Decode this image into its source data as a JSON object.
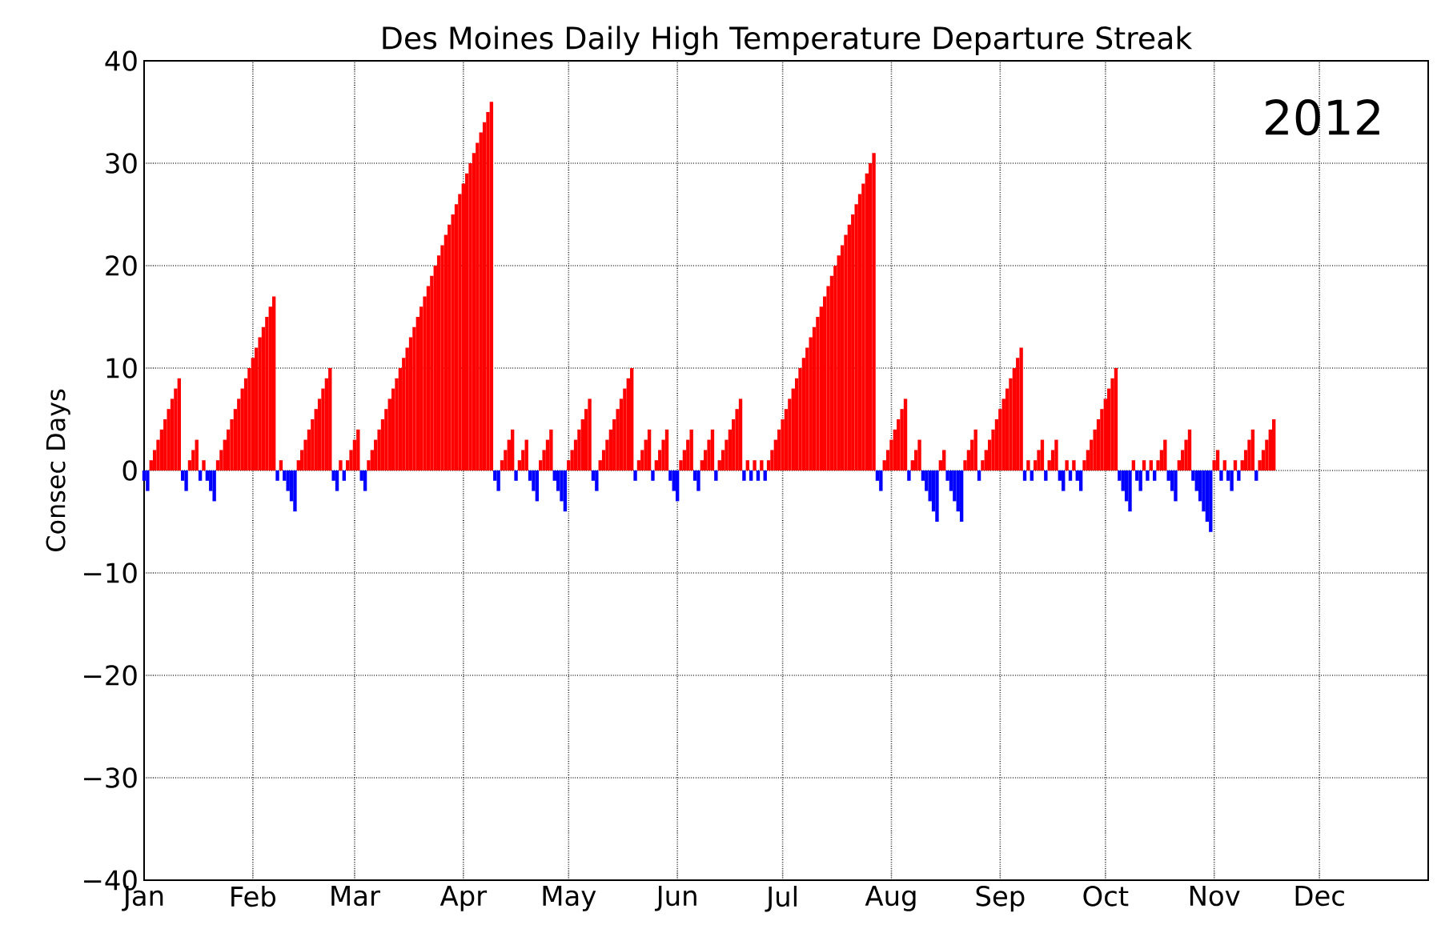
{
  "chart_data": {
    "type": "bar",
    "title": "Des Moines Daily High Temperature Departure Streak",
    "ylabel": "Consec Days",
    "annotations": [
      "2012"
    ],
    "xlim": [
      "2012-01-01",
      "2013-01-01"
    ],
    "xticks": [
      {
        "value": "2012-01-01",
        "label": "Jan"
      },
      {
        "value": "2012-02-01",
        "label": "Feb"
      },
      {
        "value": "2012-03-01",
        "label": "Mar"
      },
      {
        "value": "2012-04-01",
        "label": "Apr"
      },
      {
        "value": "2012-05-01",
        "label": "May"
      },
      {
        "value": "2012-06-01",
        "label": "Jun"
      },
      {
        "value": "2012-07-01",
        "label": "Jul"
      },
      {
        "value": "2012-08-01",
        "label": "Aug"
      },
      {
        "value": "2012-09-01",
        "label": "Sep"
      },
      {
        "value": "2012-10-01",
        "label": "Oct"
      },
      {
        "value": "2012-11-01",
        "label": "Nov"
      },
      {
        "value": "2012-12-01",
        "label": "Dec"
      }
    ],
    "ylim": [
      -40,
      40
    ],
    "yticks": [
      {
        "value": -40,
        "label": "−40"
      },
      {
        "value": -30,
        "label": "−30"
      },
      {
        "value": -20,
        "label": "−20"
      },
      {
        "value": -10,
        "label": "−10"
      },
      0,
      10,
      20,
      30,
      40
    ],
    "grid": true,
    "series": [
      {
        "color": "#ff0000",
        "x": [
          "2012-01-03",
          "2012-01-04",
          "2012-01-05",
          "2012-01-06",
          "2012-01-07",
          "2012-01-08",
          "2012-01-09",
          "2012-01-10",
          "2012-01-11",
          "2012-01-14",
          "2012-01-15",
          "2012-01-16",
          "2012-01-18",
          "2012-01-22",
          "2012-01-23",
          "2012-01-24",
          "2012-01-25",
          "2012-01-26",
          "2012-01-27",
          "2012-01-28",
          "2012-01-29",
          "2012-01-30",
          "2012-01-31",
          "2012-02-01",
          "2012-02-02",
          "2012-02-03",
          "2012-02-04",
          "2012-02-05",
          "2012-02-06",
          "2012-02-07",
          "2012-02-09",
          "2012-02-14",
          "2012-02-15",
          "2012-02-16",
          "2012-02-17",
          "2012-02-18",
          "2012-02-19",
          "2012-02-20",
          "2012-02-21",
          "2012-02-22",
          "2012-02-23",
          "2012-02-26",
          "2012-02-28",
          "2012-02-29",
          "2012-03-01",
          "2012-03-02",
          "2012-03-05",
          "2012-03-06",
          "2012-03-07",
          "2012-03-08",
          "2012-03-09",
          "2012-03-10",
          "2012-03-11",
          "2012-03-12",
          "2012-03-13",
          "2012-03-14",
          "2012-03-15",
          "2012-03-16",
          "2012-03-17",
          "2012-03-18",
          "2012-03-19",
          "2012-03-20",
          "2012-03-21",
          "2012-03-22",
          "2012-03-23",
          "2012-03-24",
          "2012-03-25",
          "2012-03-26",
          "2012-03-27",
          "2012-03-28",
          "2012-03-29",
          "2012-03-30",
          "2012-03-31",
          "2012-04-01",
          "2012-04-02",
          "2012-04-03",
          "2012-04-04",
          "2012-04-05",
          "2012-04-06",
          "2012-04-07",
          "2012-04-08",
          "2012-04-09",
          "2012-04-12",
          "2012-04-13",
          "2012-04-14",
          "2012-04-15",
          "2012-04-17",
          "2012-04-18",
          "2012-04-19",
          "2012-04-23",
          "2012-04-24",
          "2012-04-25",
          "2012-04-26",
          "2012-05-01",
          "2012-05-02",
          "2012-05-03",
          "2012-05-04",
          "2012-05-05",
          "2012-05-06",
          "2012-05-07",
          "2012-05-10",
          "2012-05-11",
          "2012-05-12",
          "2012-05-13",
          "2012-05-14",
          "2012-05-15",
          "2012-05-16",
          "2012-05-17",
          "2012-05-18",
          "2012-05-19",
          "2012-05-21",
          "2012-05-22",
          "2012-05-23",
          "2012-05-24",
          "2012-05-26",
          "2012-05-27",
          "2012-05-28",
          "2012-05-29",
          "2012-06-02",
          "2012-06-03",
          "2012-06-04",
          "2012-06-05",
          "2012-06-08",
          "2012-06-09",
          "2012-06-10",
          "2012-06-11",
          "2012-06-13",
          "2012-06-14",
          "2012-06-15",
          "2012-06-16",
          "2012-06-17",
          "2012-06-18",
          "2012-06-19",
          "2012-06-21",
          "2012-06-23",
          "2012-06-25",
          "2012-06-27",
          "2012-06-28",
          "2012-06-29",
          "2012-06-30",
          "2012-07-01",
          "2012-07-02",
          "2012-07-03",
          "2012-07-04",
          "2012-07-05",
          "2012-07-06",
          "2012-07-07",
          "2012-07-08",
          "2012-07-09",
          "2012-07-10",
          "2012-07-11",
          "2012-07-12",
          "2012-07-13",
          "2012-07-14",
          "2012-07-15",
          "2012-07-16",
          "2012-07-17",
          "2012-07-18",
          "2012-07-19",
          "2012-07-20",
          "2012-07-21",
          "2012-07-22",
          "2012-07-23",
          "2012-07-24",
          "2012-07-25",
          "2012-07-26",
          "2012-07-27",
          "2012-07-30",
          "2012-07-31",
          "2012-08-01",
          "2012-08-02",
          "2012-08-03",
          "2012-08-04",
          "2012-08-05",
          "2012-08-07",
          "2012-08-08",
          "2012-08-09",
          "2012-08-15",
          "2012-08-16",
          "2012-08-22",
          "2012-08-23",
          "2012-08-24",
          "2012-08-25",
          "2012-08-27",
          "2012-08-28",
          "2012-08-29",
          "2012-08-30",
          "2012-08-31",
          "2012-09-01",
          "2012-09-02",
          "2012-09-03",
          "2012-09-04",
          "2012-09-05",
          "2012-09-06",
          "2012-09-07",
          "2012-09-09",
          "2012-09-11",
          "2012-09-12",
          "2012-09-13",
          "2012-09-15",
          "2012-09-16",
          "2012-09-17",
          "2012-09-20",
          "2012-09-22",
          "2012-09-25",
          "2012-09-26",
          "2012-09-27",
          "2012-09-28",
          "2012-09-29",
          "2012-09-30",
          "2012-10-01",
          "2012-10-02",
          "2012-10-03",
          "2012-10-04",
          "2012-10-09",
          "2012-10-12",
          "2012-10-14",
          "2012-10-16",
          "2012-10-17",
          "2012-10-18",
          "2012-10-22",
          "2012-10-23",
          "2012-10-24",
          "2012-10-25",
          "2012-11-01",
          "2012-11-02",
          "2012-11-04",
          "2012-11-07",
          "2012-11-09",
          "2012-11-10",
          "2012-11-11",
          "2012-11-12",
          "2012-11-14",
          "2012-11-15",
          "2012-11-16",
          "2012-11-17",
          "2012-11-18"
        ],
        "values": [
          1,
          2,
          3,
          4,
          5,
          6,
          7,
          8,
          9,
          1,
          2,
          3,
          1,
          1,
          2,
          3,
          4,
          5,
          6,
          7,
          8,
          9,
          10,
          11,
          12,
          13,
          14,
          15,
          16,
          17,
          1,
          1,
          2,
          3,
          4,
          5,
          6,
          7,
          8,
          9,
          10,
          1,
          1,
          2,
          3,
          4,
          1,
          2,
          3,
          4,
          5,
          6,
          7,
          8,
          9,
          10,
          11,
          12,
          13,
          14,
          15,
          16,
          17,
          18,
          19,
          20,
          21,
          22,
          23,
          24,
          25,
          26,
          27,
          28,
          29,
          30,
          31,
          32,
          33,
          34,
          35,
          36,
          1,
          2,
          3,
          4,
          1,
          2,
          3,
          1,
          2,
          3,
          4,
          1,
          2,
          3,
          4,
          5,
          6,
          7,
          1,
          2,
          3,
          4,
          5,
          6,
          7,
          8,
          9,
          10,
          1,
          2,
          3,
          4,
          1,
          2,
          3,
          4,
          1,
          2,
          3,
          4,
          1,
          2,
          3,
          4,
          1,
          2,
          3,
          4,
          5,
          6,
          7,
          1,
          1,
          1,
          1,
          2,
          3,
          4,
          5,
          6,
          7,
          8,
          9,
          10,
          11,
          12,
          13,
          14,
          15,
          16,
          17,
          18,
          19,
          20,
          21,
          22,
          23,
          24,
          25,
          26,
          27,
          28,
          29,
          30,
          31,
          1,
          2,
          3,
          4,
          5,
          6,
          7,
          1,
          2,
          3,
          1,
          2,
          1,
          2,
          3,
          4,
          1,
          2,
          3,
          4,
          5,
          6,
          7,
          8,
          9,
          10,
          11,
          12,
          1,
          1,
          2,
          3,
          1,
          2,
          3,
          1,
          1,
          1,
          2,
          3,
          4,
          5,
          6,
          7,
          8,
          9,
          10,
          1,
          1,
          1,
          1,
          2,
          3,
          1,
          2,
          3,
          4,
          1,
          2,
          1,
          1,
          1,
          2,
          3,
          4,
          1,
          2,
          3,
          4,
          5
        ]
      },
      {
        "color": "#0000ff",
        "x": [
          "2012-01-01",
          "2012-01-02",
          "2012-01-12",
          "2012-01-13",
          "2012-01-17",
          "2012-01-19",
          "2012-01-20",
          "2012-01-21",
          "2012-02-08",
          "2012-02-10",
          "2012-02-11",
          "2012-02-12",
          "2012-02-13",
          "2012-02-24",
          "2012-02-25",
          "2012-02-27",
          "2012-03-03",
          "2012-03-04",
          "2012-04-10",
          "2012-04-11",
          "2012-04-16",
          "2012-04-20",
          "2012-04-21",
          "2012-04-22",
          "2012-04-27",
          "2012-04-28",
          "2012-04-29",
          "2012-04-30",
          "2012-05-08",
          "2012-05-09",
          "2012-05-20",
          "2012-05-25",
          "2012-05-30",
          "2012-05-31",
          "2012-06-01",
          "2012-06-06",
          "2012-06-07",
          "2012-06-12",
          "2012-06-20",
          "2012-06-22",
          "2012-06-24",
          "2012-06-26",
          "2012-07-28",
          "2012-07-29",
          "2012-08-06",
          "2012-08-10",
          "2012-08-11",
          "2012-08-12",
          "2012-08-13",
          "2012-08-14",
          "2012-08-17",
          "2012-08-18",
          "2012-08-19",
          "2012-08-20",
          "2012-08-21",
          "2012-08-26",
          "2012-09-08",
          "2012-09-10",
          "2012-09-14",
          "2012-09-18",
          "2012-09-19",
          "2012-09-21",
          "2012-09-23",
          "2012-09-24",
          "2012-10-05",
          "2012-10-06",
          "2012-10-07",
          "2012-10-08",
          "2012-10-10",
          "2012-10-11",
          "2012-10-13",
          "2012-10-15",
          "2012-10-19",
          "2012-10-20",
          "2012-10-21",
          "2012-10-26",
          "2012-10-27",
          "2012-10-28",
          "2012-10-29",
          "2012-10-30",
          "2012-10-31",
          "2012-11-03",
          "2012-11-05",
          "2012-11-06",
          "2012-11-08",
          "2012-11-13"
        ],
        "values": [
          -1,
          -2,
          -1,
          -2,
          -1,
          -1,
          -2,
          -3,
          -1,
          -1,
          -2,
          -3,
          -4,
          -1,
          -2,
          -1,
          -1,
          -2,
          -1,
          -2,
          -1,
          -1,
          -2,
          -3,
          -1,
          -2,
          -3,
          -4,
          -1,
          -2,
          -1,
          -1,
          -1,
          -2,
          -3,
          -1,
          -2,
          -1,
          -1,
          -1,
          -1,
          -1,
          -1,
          -2,
          -1,
          -1,
          -2,
          -3,
          -4,
          -5,
          -1,
          -2,
          -3,
          -4,
          -5,
          -1,
          -1,
          -1,
          -1,
          -1,
          -2,
          -1,
          -1,
          -2,
          -1,
          -2,
          -3,
          -4,
          -1,
          -2,
          -1,
          -1,
          -1,
          -2,
          -3,
          -1,
          -2,
          -3,
          -4,
          -5,
          -6,
          -1,
          -1,
          -2,
          -1,
          -1
        ]
      }
    ]
  }
}
